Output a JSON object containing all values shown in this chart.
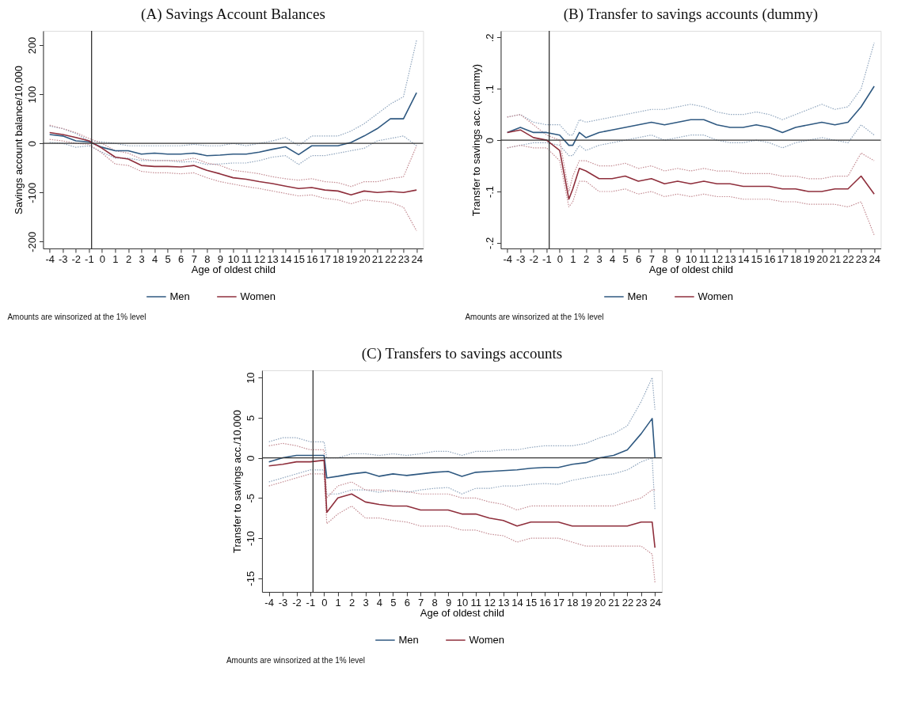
{
  "chart_data": [
    {
      "type": "line",
      "title": "(A)  Savings Account Balances",
      "xlabel": "Age of oldest child",
      "ylabel": "Savings account balance/10,000",
      "x": [
        -4,
        -3,
        -2,
        -1,
        0,
        1,
        2,
        3,
        4,
        5,
        6,
        7,
        8,
        9,
        10,
        11,
        12,
        13,
        14,
        15,
        16,
        17,
        18,
        19,
        20,
        21,
        22,
        23,
        24
      ],
      "xlim": [
        -4.5,
        24.5
      ],
      "xticks": [
        -4,
        -3,
        -2,
        -1,
        0,
        1,
        2,
        3,
        4,
        5,
        6,
        7,
        8,
        9,
        10,
        11,
        12,
        13,
        14,
        15,
        16,
        17,
        18,
        19,
        20,
        21,
        22,
        23,
        24
      ],
      "ylim": [
        -214,
        229
      ],
      "yticks": [
        -200,
        -100,
        0,
        100,
        200
      ],
      "series": [
        {
          "color": "#8fa5bd",
          "line_style": "dotted",
          "values": [
            2,
            0,
            -8,
            -5,
            -18,
            -30,
            -30,
            -35,
            -35,
            -35,
            -38,
            -37,
            -43,
            -42,
            -40,
            -40,
            -35,
            -28,
            -25,
            -43,
            -25,
            -25,
            -20,
            -15,
            -10,
            5,
            10,
            15,
            -5
          ]
        },
        {
          "color": "#8fa5bd",
          "line_style": "dotted",
          "values": [
            35,
            30,
            20,
            5,
            3,
            0,
            -5,
            -5,
            -5,
            -5,
            -5,
            -2,
            -5,
            -5,
            0,
            -5,
            0,
            5,
            12,
            -5,
            15,
            15,
            15,
            25,
            40,
            60,
            80,
            95,
            210
          ]
        },
        {
          "color": "#c48c93",
          "line_style": "dotted",
          "values": [
            8,
            5,
            0,
            -2,
            -20,
            -42,
            -45,
            -57,
            -60,
            -60,
            -62,
            -60,
            -70,
            -78,
            -83,
            -88,
            -92,
            -97,
            -102,
            -107,
            -105,
            -112,
            -115,
            -123,
            -115,
            -118,
            -120,
            -130,
            -178
          ]
        },
        {
          "color": "#c48c93",
          "line_style": "dotted",
          "values": [
            37,
            30,
            22,
            10,
            0,
            -15,
            -20,
            -32,
            -35,
            -35,
            -35,
            -30,
            -40,
            -45,
            -55,
            -58,
            -62,
            -68,
            -72,
            -75,
            -72,
            -78,
            -80,
            -88,
            -78,
            -78,
            -72,
            -68,
            -5
          ]
        },
        {
          "name": "Men",
          "color": "#2f5981",
          "line_style": "solid",
          "values": [
            18,
            15,
            5,
            3,
            -8,
            -15,
            -15,
            -22,
            -20,
            -22,
            -22,
            -20,
            -25,
            -24,
            -22,
            -22,
            -18,
            -12,
            -7,
            -23,
            -5,
            -5,
            -5,
            2,
            15,
            30,
            50,
            50,
            103
          ]
        },
        {
          "name": "Women",
          "color": "#8f2f3c",
          "line_style": "solid",
          "values": [
            22,
            18,
            12,
            5,
            -10,
            -28,
            -32,
            -45,
            -47,
            -47,
            -48,
            -45,
            -55,
            -62,
            -70,
            -73,
            -78,
            -82,
            -87,
            -92,
            -90,
            -95,
            -97,
            -105,
            -97,
            -100,
            -98,
            -100,
            -95
          ]
        }
      ],
      "ref_lines": [
        {
          "axis": "y",
          "value": 0,
          "color": "#333333"
        },
        {
          "axis": "x",
          "value": -0.8,
          "color": "#333333"
        }
      ],
      "legend": "bottom",
      "grid": false,
      "annotations": [
        "Amounts are winsorized at the 1% level"
      ]
    },
    {
      "type": "line",
      "title": "(B)  Transfer to savings accounts (dummy)",
      "xlabel": "Age of oldest child",
      "ylabel": "Transfer to savings acc. (dummy)",
      "x": [
        -4,
        -3,
        -2,
        -1,
        0,
        0.7,
        1,
        1.5,
        2,
        3,
        4,
        5,
        6,
        7,
        8,
        9,
        10,
        11,
        12,
        13,
        14,
        15,
        16,
        17,
        18,
        19,
        20,
        21,
        22,
        23,
        24
      ],
      "xlim": [
        -4.5,
        24.5
      ],
      "xticks": [
        -4,
        -3,
        -2,
        -1,
        0,
        1,
        2,
        3,
        4,
        5,
        6,
        7,
        8,
        9,
        10,
        11,
        12,
        13,
        14,
        15,
        16,
        17,
        18,
        19,
        20,
        21,
        22,
        23,
        24
      ],
      "ylim": [
        -0.211,
        0.213
      ],
      "yticks": [
        {
          "value": -0.2,
          "label": "-.2"
        },
        {
          "value": -0.1,
          "label": "-.1"
        },
        0,
        {
          "value": 0.1,
          "label": ".1"
        },
        {
          "value": 0.2,
          "label": ".2"
        }
      ],
      "series": [
        {
          "color": "#8fa5bd",
          "line_style": "dotted",
          "values": [
            -0.015,
            -0.01,
            -0.005,
            -0.005,
            -0.01,
            -0.03,
            -0.03,
            -0.01,
            -0.02,
            -0.01,
            -0.005,
            0.0,
            0.005,
            0.01,
            0.0,
            0.005,
            0.01,
            0.01,
            0.0,
            -0.005,
            -0.005,
            0.0,
            -0.005,
            -0.015,
            -0.005,
            0.0,
            0.005,
            0.0,
            -0.005,
            0.03,
            0.01
          ]
        },
        {
          "color": "#8fa5bd",
          "line_style": "dotted",
          "values": [
            0.045,
            0.05,
            0.035,
            0.03,
            0.03,
            0.01,
            0.01,
            0.04,
            0.035,
            0.04,
            0.045,
            0.05,
            0.055,
            0.06,
            0.06,
            0.065,
            0.07,
            0.065,
            0.055,
            0.05,
            0.05,
            0.055,
            0.05,
            0.04,
            0.05,
            0.06,
            0.07,
            0.06,
            0.065,
            0.1,
            0.19
          ]
        },
        {
          "color": "#c48c93",
          "line_style": "dotted",
          "values": [
            -0.015,
            -0.01,
            -0.015,
            -0.015,
            -0.04,
            -0.13,
            -0.12,
            -0.08,
            -0.08,
            -0.1,
            -0.1,
            -0.095,
            -0.105,
            -0.1,
            -0.11,
            -0.105,
            -0.11,
            -0.105,
            -0.11,
            -0.11,
            -0.115,
            -0.115,
            -0.115,
            -0.12,
            -0.12,
            -0.125,
            -0.125,
            -0.125,
            -0.13,
            -0.12,
            -0.185
          ]
        },
        {
          "color": "#c48c93",
          "line_style": "dotted",
          "values": [
            0.045,
            0.05,
            0.03,
            0.01,
            0.0,
            -0.1,
            -0.07,
            -0.04,
            -0.04,
            -0.05,
            -0.05,
            -0.045,
            -0.055,
            -0.05,
            -0.06,
            -0.055,
            -0.06,
            -0.055,
            -0.06,
            -0.06,
            -0.065,
            -0.065,
            -0.065,
            -0.07,
            -0.07,
            -0.075,
            -0.075,
            -0.07,
            -0.07,
            -0.025,
            -0.04
          ]
        },
        {
          "name": "Men",
          "color": "#2f5981",
          "line_style": "solid",
          "values": [
            0.015,
            0.025,
            0.015,
            0.015,
            0.01,
            -0.01,
            -0.01,
            0.015,
            0.005,
            0.015,
            0.02,
            0.025,
            0.03,
            0.035,
            0.03,
            0.035,
            0.04,
            0.04,
            0.03,
            0.025,
            0.025,
            0.03,
            0.025,
            0.015,
            0.025,
            0.03,
            0.035,
            0.03,
            0.035,
            0.065,
            0.105
          ]
        },
        {
          "name": "Women",
          "color": "#8f2f3c",
          "line_style": "solid",
          "values": [
            0.015,
            0.02,
            0.005,
            0.0,
            -0.02,
            -0.115,
            -0.095,
            -0.055,
            -0.06,
            -0.075,
            -0.075,
            -0.07,
            -0.08,
            -0.075,
            -0.085,
            -0.08,
            -0.085,
            -0.08,
            -0.085,
            -0.085,
            -0.09,
            -0.09,
            -0.09,
            -0.095,
            -0.095,
            -0.1,
            -0.1,
            -0.095,
            -0.095,
            -0.07,
            -0.105
          ]
        }
      ],
      "ref_lines": [
        {
          "axis": "y",
          "value": 0,
          "color": "#333333"
        },
        {
          "axis": "x",
          "value": -0.8,
          "color": "#333333"
        }
      ],
      "legend": "bottom",
      "grid": false,
      "annotations": [
        "Amounts are winsorized at the 1% level"
      ]
    },
    {
      "type": "line",
      "title": "(C)  Transfers to savings accounts",
      "xlabel": "Age of oldest child",
      "ylabel": "Transfer to savings acc./10,000",
      "x": [
        -4,
        -3,
        -2,
        -1,
        0,
        0.2,
        1,
        2,
        3,
        4,
        5,
        6,
        7,
        8,
        9,
        10,
        11,
        12,
        13,
        14,
        15,
        16,
        17,
        18,
        19,
        20,
        21,
        22,
        23,
        23.8,
        24
      ],
      "xlim": [
        -4.5,
        24.5
      ],
      "xticks": [
        -4,
        -3,
        -2,
        -1,
        0,
        1,
        2,
        3,
        4,
        5,
        6,
        7,
        8,
        9,
        10,
        11,
        12,
        13,
        14,
        15,
        16,
        17,
        18,
        19,
        20,
        21,
        22,
        23,
        24
      ],
      "ylim": [
        -16.7,
        10.9
      ],
      "yticks": [
        -15,
        -10,
        -5,
        0,
        5,
        10
      ],
      "series": [
        {
          "color": "#8fa5bd",
          "line_style": "dotted",
          "values": [
            -3,
            -2.5,
            -2,
            -1.5,
            -1.5,
            -4.5,
            -4.5,
            -4,
            -4,
            -4.3,
            -4,
            -4.3,
            -4,
            -3.8,
            -3.7,
            -4.5,
            -3.8,
            -3.8,
            -3.5,
            -3.5,
            -3.3,
            -3.2,
            -3.3,
            -2.8,
            -2.5,
            -2.2,
            -2,
            -1.5,
            -0.5,
            0,
            -6.5
          ]
        },
        {
          "color": "#8fa5bd",
          "line_style": "dotted",
          "values": [
            2,
            2.5,
            2.5,
            2,
            2,
            0,
            0,
            0.5,
            0.5,
            0.3,
            0.5,
            0.3,
            0.5,
            0.8,
            0.8,
            0.3,
            0.8,
            0.8,
            1,
            1,
            1.3,
            1.5,
            1.5,
            1.5,
            1.8,
            2.5,
            3,
            4,
            7,
            10,
            6
          ]
        },
        {
          "color": "#c48c93",
          "line_style": "dotted",
          "values": [
            -3.5,
            -3,
            -2.5,
            -2,
            -2,
            -8.2,
            -7,
            -6,
            -7.5,
            -7.5,
            -7.8,
            -8,
            -8.5,
            -8.5,
            -8.5,
            -9,
            -9,
            -9.5,
            -9.7,
            -10.5,
            -10,
            -10,
            -10,
            -10.5,
            -11,
            -11,
            -11,
            -11,
            -11,
            -12,
            -15.5
          ]
        },
        {
          "color": "#c48c93",
          "line_style": "dotted",
          "values": [
            1.5,
            1.8,
            1.5,
            1,
            1,
            -5,
            -3.5,
            -3,
            -4,
            -4,
            -4.2,
            -4.2,
            -4.5,
            -4.5,
            -4.5,
            -5,
            -5,
            -5.5,
            -5.8,
            -6.5,
            -6,
            -6,
            -6,
            -6,
            -6,
            -6,
            -6,
            -5.5,
            -5,
            -4,
            -4
          ]
        },
        {
          "name": "Men",
          "color": "#2f5981",
          "line_style": "solid",
          "values": [
            -0.5,
            0,
            0.3,
            0.3,
            0.3,
            -2.5,
            -2.3,
            -2,
            -1.8,
            -2.3,
            -2,
            -2.2,
            -2,
            -1.8,
            -1.7,
            -2.3,
            -1.8,
            -1.7,
            -1.6,
            -1.5,
            -1.3,
            -1.2,
            -1.2,
            -0.8,
            -0.6,
            0,
            0.3,
            1,
            3,
            4.9,
            0
          ]
        },
        {
          "name": "Women",
          "color": "#8f2f3c",
          "line_style": "solid",
          "values": [
            -1,
            -0.8,
            -0.5,
            -0.5,
            -0.3,
            -6.8,
            -5,
            -4.5,
            -5.5,
            -5.8,
            -6,
            -6,
            -6.5,
            -6.5,
            -6.5,
            -7,
            -7,
            -7.5,
            -7.8,
            -8.5,
            -8,
            -8,
            -8,
            -8.5,
            -8.5,
            -8.5,
            -8.5,
            -8.5,
            -8,
            -8,
            -11.2
          ]
        }
      ],
      "ref_lines": [
        {
          "axis": "y",
          "value": 0,
          "color": "#333333"
        },
        {
          "axis": "x",
          "value": -0.8,
          "color": "#333333"
        }
      ],
      "legend": "bottom",
      "grid": false,
      "annotations": [
        "Amounts are winsorized at the 1% level"
      ]
    }
  ]
}
